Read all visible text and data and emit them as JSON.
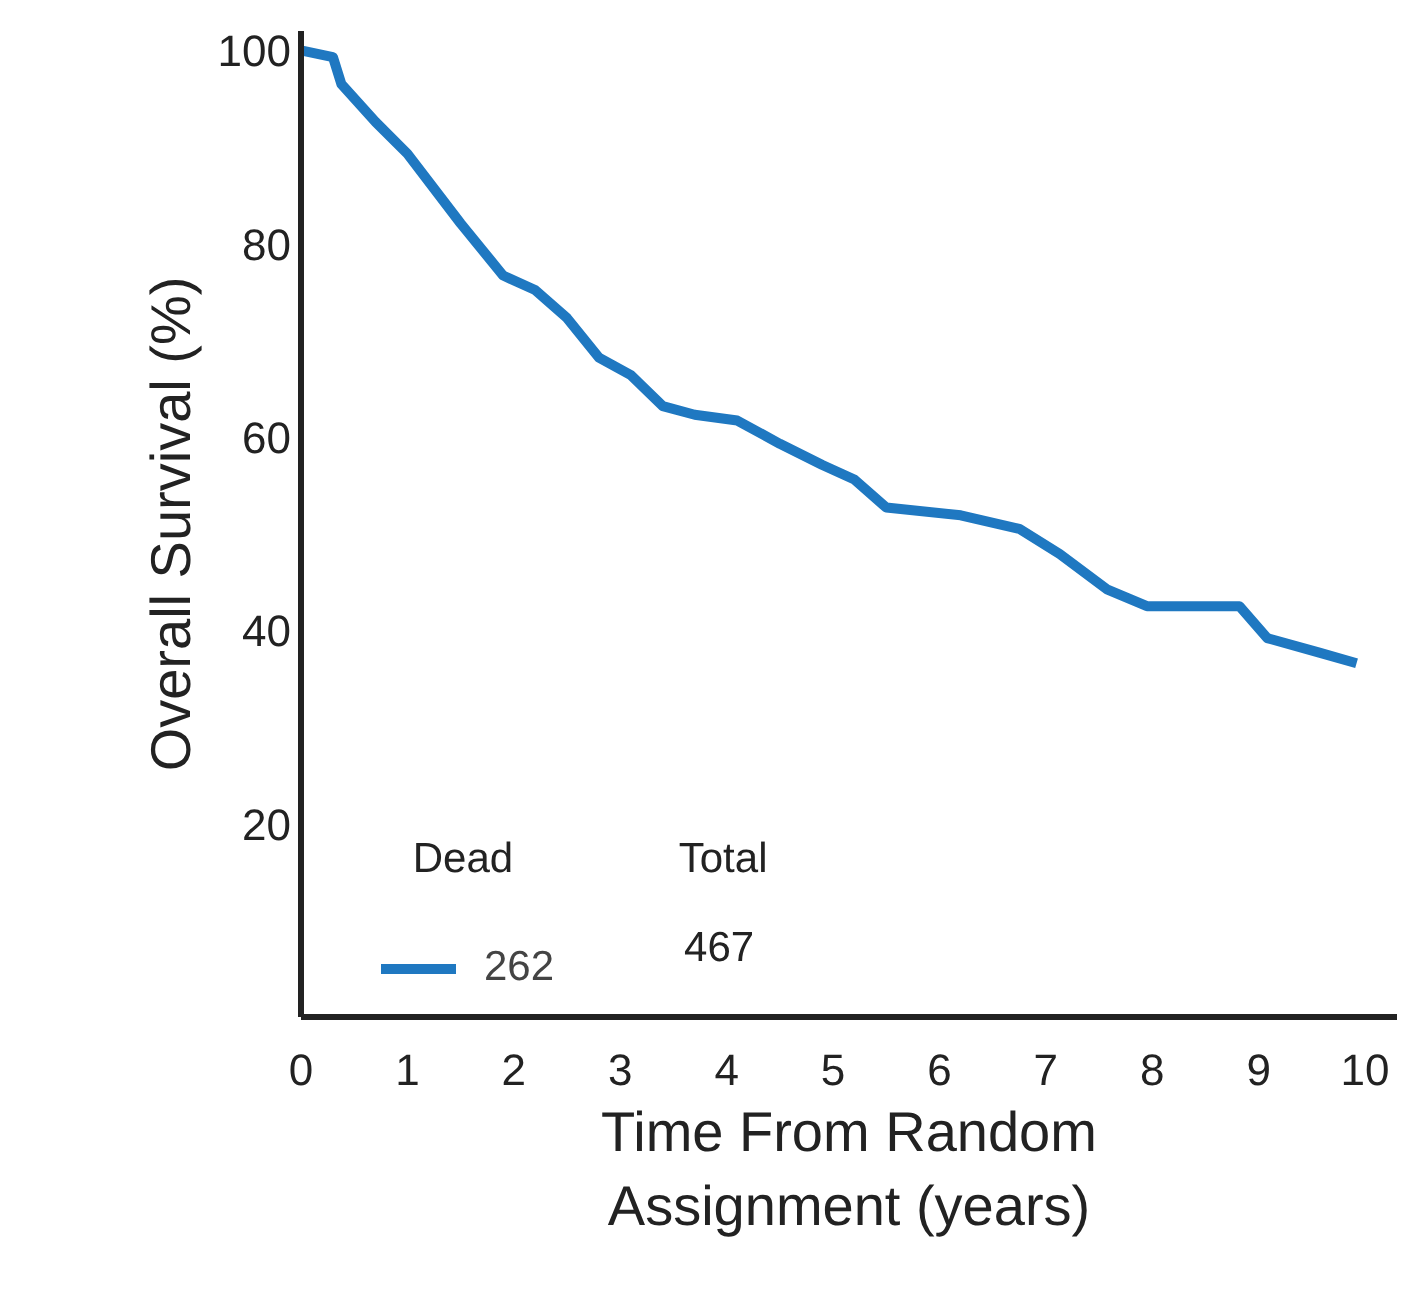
{
  "chart_data": {
    "type": "line",
    "xlabel": "Time From Random\nAssignment (years)",
    "ylabel": "Overall Survival (%)",
    "x": [
      0,
      0.3,
      0.38,
      0.7,
      1.0,
      1.5,
      1.9,
      2.2,
      2.5,
      2.8,
      3.1,
      3.4,
      3.7,
      4.1,
      4.5,
      4.9,
      5.2,
      5.5,
      6.2,
      6.75,
      7.13,
      7.58,
      7.95,
      8.82,
      9.08,
      9.57,
      9.92
    ],
    "series": [
      {
        "name": "262",
        "color": "#1f78c1",
        "values": [
          100,
          99.3,
          96.5,
          92.6,
          89.3,
          82.1,
          76.7,
          75.2,
          72.3,
          68.2,
          66.4,
          63.2,
          62.3,
          61.7,
          59.3,
          57.1,
          55.6,
          52.7,
          51.9,
          50.5,
          47.9,
          44.2,
          42.5,
          42.5,
          39.2,
          37.7,
          36.6
        ]
      }
    ],
    "annotations": [
      "Dead",
      "Total",
      "467"
    ],
    "xlim": [
      0,
      10.3
    ],
    "ylim": [
      0,
      102
    ],
    "xticks": [
      0,
      1,
      2,
      3,
      4,
      5,
      6,
      7,
      8,
      9,
      10
    ],
    "yticks": [
      20,
      40,
      60,
      80,
      100
    ],
    "grid": false,
    "legend": "bottom left",
    "marker": "none",
    "line_style": "solid"
  }
}
